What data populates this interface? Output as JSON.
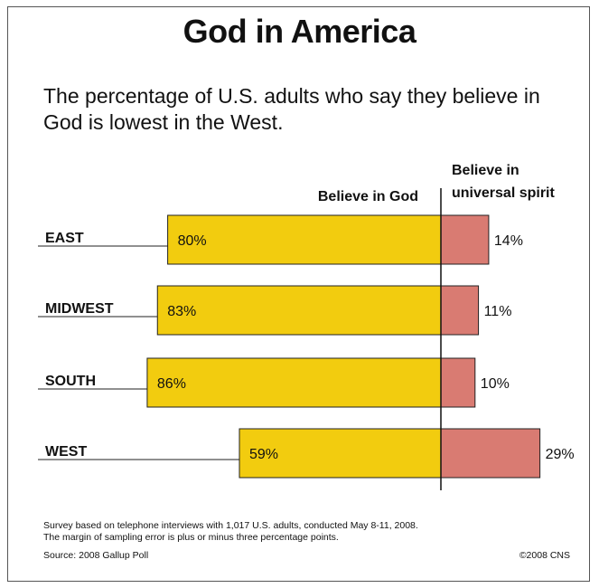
{
  "title": "God in America",
  "subtitle": "The percentage of U.S. adults who say they believe in God is lowest in the West.",
  "chart_data": {
    "type": "bar",
    "orientation": "diverging-horizontal",
    "categories": [
      "EAST",
      "MIDWEST",
      "SOUTH",
      "WEST"
    ],
    "series": [
      {
        "name": "Believe in God",
        "values": [
          80,
          83,
          86,
          59
        ],
        "color": "#f2cc0f",
        "direction": "left"
      },
      {
        "name": "Believe in universal spirit",
        "values": [
          14,
          11,
          10,
          29
        ],
        "color": "#d97b72",
        "direction": "right"
      }
    ],
    "header_left": "Believe in God",
    "header_right_line1": "Believe in",
    "header_right_line2": "universal spirit",
    "value_suffix": "%"
  },
  "notes": {
    "line1": "Survey based on telephone interviews with 1,017 U.S. adults, conducted May 8-11, 2008.",
    "line2": "The margin of sampling error is plus or minus three percentage points.",
    "source": "Source: 2008 Gallup Poll",
    "credit": "©2008 CNS"
  }
}
